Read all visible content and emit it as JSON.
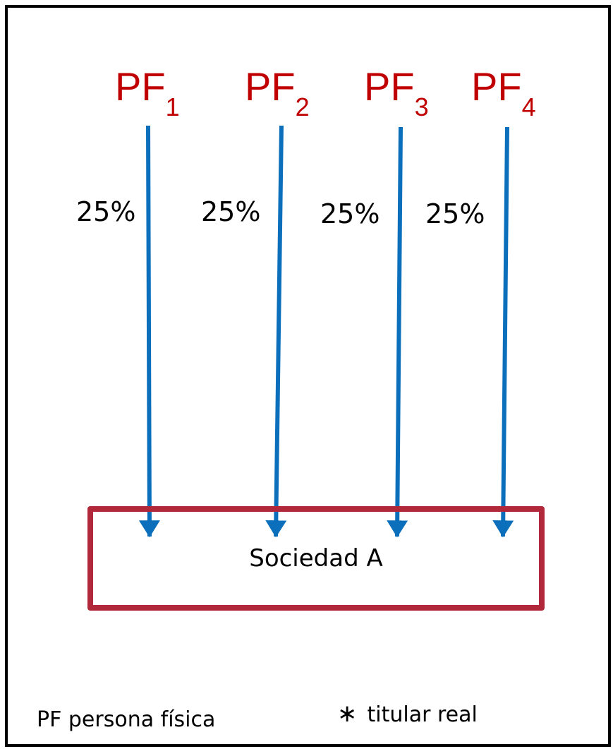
{
  "colors": {
    "owner_label": "#c00000",
    "arrow": "#0b6fbb",
    "entity_border": "#b0283a",
    "frame": "#000000"
  },
  "owners": [
    {
      "prefix": "PF",
      "sub": "1",
      "share": "25%"
    },
    {
      "prefix": "PF",
      "sub": "2",
      "share": "25%"
    },
    {
      "prefix": "PF",
      "sub": "3",
      "share": "25%"
    },
    {
      "prefix": "PF",
      "sub": "4",
      "share": "25%"
    }
  ],
  "entity": {
    "label": "Sociedad A"
  },
  "legend": {
    "pf_definition": "PF persona física",
    "star_symbol": "∗",
    "star_definition": "titular real"
  }
}
